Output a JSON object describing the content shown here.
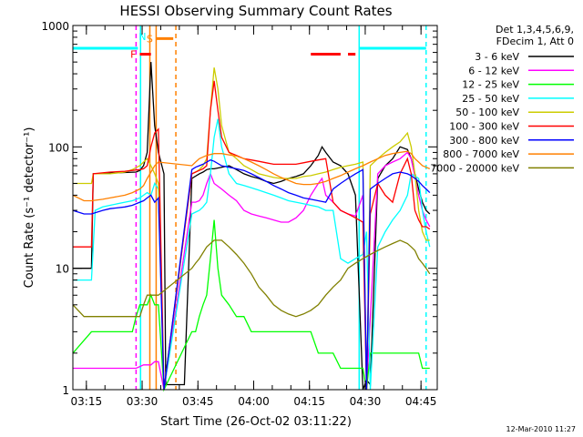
{
  "chart_data": {
    "type": "line",
    "title": "HESSI Observing Summary Count Rates",
    "xlabel": "Start Time (26-Oct-02 03:11:22)",
    "ylabel": "Count Rate (s⁻¹ detector⁻¹)",
    "x_unit": "minutes since 03:11:22",
    "x_ticks": [
      {
        "label": "03:15",
        "x": 3.63
      },
      {
        "label": "03:30",
        "x": 18.63
      },
      {
        "label": "03:45",
        "x": 33.63
      },
      {
        "label": "04:00",
        "x": 48.63
      },
      {
        "label": "04:15",
        "x": 63.63
      },
      {
        "label": "04:30",
        "x": 78.63
      },
      {
        "label": "04:45",
        "x": 93.63
      }
    ],
    "y_ticks": [
      {
        "label": "1",
        "y": 1
      },
      {
        "label": "10",
        "y": 10
      },
      {
        "label": "100",
        "y": 100
      },
      {
        "label": "1000",
        "y": 1000
      }
    ],
    "xlim": [
      0,
      98
    ],
    "ylim": [
      1,
      1000
    ],
    "y_scale": "log",
    "legend_header": [
      "Det 1,3,4,5,6,9,",
      "FDecim 1, Att 0"
    ],
    "legend_position": "right",
    "series": [
      {
        "name": "3 - 6 keV",
        "color": "#000000",
        "x": [
          0,
          5,
          5.5,
          17,
          18,
          19,
          20,
          21,
          22,
          23,
          24.5,
          25,
          26,
          27,
          28,
          29,
          30,
          32,
          34,
          35,
          36,
          37,
          38,
          40,
          42,
          44,
          46,
          48,
          50,
          52,
          54,
          56,
          58,
          60,
          62,
          64,
          66,
          67,
          68,
          70,
          72,
          74,
          76,
          78,
          79,
          80,
          82,
          84,
          86,
          88,
          90,
          91,
          93,
          94,
          95,
          96
        ],
        "y": [
          10,
          10,
          60,
          62,
          64,
          70,
          90,
          500,
          150,
          90,
          60,
          1.1,
          1.1,
          1.1,
          1.1,
          1.1,
          1.1,
          55,
          60,
          62,
          65,
          66,
          66,
          68,
          70,
          65,
          60,
          57,
          55,
          52,
          50,
          52,
          55,
          57,
          60,
          70,
          85,
          100,
          90,
          75,
          70,
          60,
          40,
          1,
          1.2,
          1.1,
          55,
          70,
          80,
          100,
          95,
          80,
          45,
          35,
          30,
          28
        ]
      },
      {
        "name": "6 - 12 keV",
        "color": "#ff00ff",
        "x": [
          0,
          5,
          17,
          19,
          21,
          22,
          23,
          24.5,
          32,
          33,
          34,
          35,
          36,
          37,
          38,
          40,
          42,
          44,
          46,
          48,
          50,
          52,
          54,
          56,
          58,
          60,
          62,
          64,
          66,
          67,
          68,
          70,
          72,
          74,
          76,
          78,
          79,
          82,
          84,
          86,
          88,
          90,
          91,
          93,
          94,
          95,
          96
        ],
        "y": [
          1.5,
          1.5,
          1.5,
          1.6,
          1.6,
          1.7,
          1.7,
          1.0,
          35,
          35,
          36,
          40,
          50,
          60,
          50,
          45,
          40,
          36,
          30,
          28,
          27,
          26,
          25,
          24,
          24,
          26,
          30,
          40,
          50,
          55,
          40,
          35,
          30,
          28,
          27,
          40,
          1,
          60,
          70,
          75,
          80,
          90,
          80,
          40,
          30,
          25,
          22
        ]
      },
      {
        "name": "12 - 25 keV",
        "color": "#00ff00",
        "x": [
          0,
          5,
          8,
          10,
          12,
          14,
          16,
          17,
          18,
          19,
          20,
          21,
          22,
          23,
          24.5,
          32,
          33,
          34,
          35,
          36,
          37,
          38,
          39,
          40,
          42,
          44,
          46,
          48,
          50,
          52,
          54,
          56,
          58,
          60,
          62,
          64,
          66,
          68,
          70,
          72,
          74,
          76,
          78,
          79,
          80,
          82,
          84,
          86,
          88,
          90,
          91,
          93,
          94,
          95,
          96
        ],
        "y": [
          2,
          3,
          3,
          3,
          3,
          3,
          3,
          4,
          5,
          5,
          5,
          6,
          5,
          5,
          1,
          3,
          3,
          4,
          5,
          6,
          12,
          25,
          10,
          6,
          5,
          4,
          4,
          3,
          3,
          3,
          3,
          3,
          3,
          3,
          3,
          3,
          2,
          2,
          2,
          1.5,
          1.5,
          1.5,
          1.5,
          1,
          2,
          2,
          2,
          2,
          2,
          2,
          2,
          2,
          1.5,
          1.5,
          1.5
        ]
      },
      {
        "name": "25 - 50 keV",
        "color": "#00ffff",
        "x": [
          0,
          3,
          5,
          6,
          8,
          10,
          14,
          16,
          18,
          19,
          20,
          21,
          22,
          23,
          24.5,
          32,
          33,
          34,
          35,
          36,
          37,
          38,
          39,
          40,
          42,
          44,
          46,
          48,
          50,
          52,
          54,
          56,
          58,
          60,
          62,
          64,
          66,
          68,
          70,
          72,
          74,
          76,
          78,
          79,
          80,
          82,
          84,
          86,
          88,
          90,
          91,
          93,
          94,
          95,
          96
        ],
        "y": [
          8,
          8,
          8,
          30,
          32,
          33,
          35,
          36,
          38,
          40,
          42,
          40,
          50,
          45,
          1,
          28,
          29,
          30,
          32,
          35,
          60,
          120,
          170,
          100,
          60,
          50,
          48,
          46,
          44,
          42,
          40,
          38,
          36,
          35,
          34,
          33,
          32,
          30,
          30,
          12,
          11,
          12,
          13,
          20,
          1,
          15,
          20,
          25,
          30,
          40,
          60,
          55,
          30,
          20,
          15
        ]
      },
      {
        "name": "50 - 100 keV",
        "color": "#cccc00",
        "x": [
          0,
          5,
          5.5,
          10,
          14,
          16,
          18,
          19,
          20,
          21,
          22,
          23,
          24.5,
          32,
          33,
          34,
          35,
          36,
          37,
          38,
          39,
          40,
          42,
          44,
          46,
          48,
          50,
          52,
          54,
          56,
          58,
          60,
          62,
          64,
          66,
          68,
          70,
          72,
          74,
          76,
          78,
          79,
          80,
          82,
          84,
          86,
          88,
          90,
          91,
          92,
          93,
          94,
          95,
          96
        ],
        "y": [
          50,
          50,
          60,
          60,
          62,
          65,
          70,
          75,
          80,
          70,
          60,
          50,
          1,
          60,
          62,
          65,
          70,
          80,
          200,
          450,
          300,
          150,
          90,
          80,
          70,
          65,
          60,
          58,
          56,
          55,
          55,
          55,
          57,
          58,
          60,
          62,
          65,
          68,
          70,
          72,
          75,
          1,
          70,
          80,
          90,
          100,
          110,
          130,
          100,
          60,
          30,
          20,
          17,
          17
        ]
      },
      {
        "name": "100 - 300 keV",
        "color": "#ff0000",
        "x": [
          0,
          5,
          5.5,
          10,
          14,
          16,
          18,
          19,
          20,
          21,
          22,
          23,
          24.5,
          32,
          33,
          34,
          35,
          36,
          37,
          38,
          39,
          40,
          42,
          44,
          46,
          48,
          50,
          52,
          54,
          56,
          58,
          60,
          62,
          64,
          66,
          68,
          70,
          72,
          74,
          76,
          78,
          79,
          80,
          82,
          84,
          86,
          88,
          90,
          91,
          92,
          93,
          94,
          95,
          96
        ],
        "y": [
          15,
          15,
          60,
          62,
          63,
          64,
          65,
          66,
          70,
          100,
          130,
          140,
          1,
          60,
          62,
          64,
          66,
          70,
          200,
          350,
          200,
          120,
          90,
          85,
          80,
          78,
          76,
          74,
          72,
          72,
          72,
          72,
          74,
          76,
          78,
          80,
          35,
          30,
          28,
          26,
          24,
          1,
          28,
          50,
          40,
          35,
          60,
          80,
          60,
          30,
          25,
          22,
          22,
          21
        ]
      },
      {
        "name": "300 - 800 keV",
        "color": "#0000ff",
        "x": [
          0,
          3,
          5,
          8,
          10,
          14,
          16,
          18,
          19,
          20,
          21,
          22,
          23,
          24.5,
          32,
          33,
          34,
          35,
          36,
          37,
          38,
          40,
          42,
          44,
          46,
          48,
          50,
          52,
          54,
          56,
          58,
          60,
          62,
          64,
          66,
          68,
          70,
          72,
          74,
          76,
          78,
          79,
          80,
          82,
          84,
          86,
          88,
          90,
          91,
          92,
          93,
          94,
          95,
          96
        ],
        "y": [
          30,
          28,
          28,
          30,
          31,
          32,
          33,
          35,
          36,
          38,
          40,
          35,
          38,
          1,
          65,
          68,
          70,
          72,
          75,
          78,
          76,
          70,
          68,
          66,
          64,
          60,
          56,
          52,
          48,
          45,
          42,
          40,
          38,
          37,
          36,
          35,
          45,
          50,
          55,
          60,
          65,
          1,
          45,
          50,
          55,
          60,
          62,
          60,
          58,
          55,
          52,
          48,
          45,
          42
        ]
      },
      {
        "name": "800 - 7000 keV",
        "color": "#ff8000",
        "x": [
          0,
          3,
          5,
          8,
          10,
          14,
          16,
          18,
          19,
          20,
          21,
          22,
          23,
          32,
          33,
          34,
          36,
          38,
          40,
          42,
          44,
          46,
          48,
          50,
          52,
          54,
          56,
          58,
          60,
          62,
          64,
          66,
          68,
          70,
          72,
          74,
          76,
          78,
          80,
          82,
          84,
          86,
          88,
          90,
          91,
          92,
          93,
          94,
          95,
          96
        ],
        "y": [
          40,
          36,
          36,
          37,
          38,
          40,
          42,
          45,
          48,
          55,
          62,
          70,
          75,
          70,
          75,
          80,
          85,
          88,
          88,
          86,
          84,
          80,
          75,
          70,
          65,
          60,
          56,
          53,
          50,
          49,
          49,
          50,
          52,
          55,
          58,
          62,
          66,
          70,
          75,
          80,
          85,
          88,
          90,
          92,
          88,
          80,
          75,
          70,
          68,
          66
        ]
      },
      {
        "name": "7000 - 20000 keV",
        "color": "#808000",
        "x": [
          0,
          3,
          5,
          8,
          10,
          14,
          16,
          18,
          19,
          20,
          21,
          22,
          23,
          32,
          33,
          34,
          36,
          38,
          40,
          42,
          44,
          46,
          48,
          50,
          52,
          54,
          56,
          58,
          60,
          62,
          64,
          66,
          68,
          70,
          72,
          74,
          76,
          78,
          80,
          82,
          84,
          86,
          88,
          90,
          91,
          92,
          93,
          94,
          95,
          96
        ],
        "y": [
          5,
          4,
          4,
          4,
          4,
          4,
          4,
          4,
          5,
          6,
          6,
          6,
          6,
          10,
          11,
          12,
          15,
          17,
          17,
          15,
          13,
          11,
          9,
          7,
          6,
          5,
          4.5,
          4.2,
          4,
          4.2,
          4.5,
          5,
          6,
          7,
          8,
          10,
          11,
          12,
          13,
          14,
          15,
          16,
          17,
          16,
          15,
          14,
          12,
          11,
          10,
          9
        ]
      }
    ],
    "vertical_lines": [
      {
        "x": 17.0,
        "color": "#ff00ff",
        "style": "dashed"
      },
      {
        "x": 18.2,
        "color": "#00ffff",
        "style": "solid"
      },
      {
        "x": 20.7,
        "color": "#ff8000",
        "style": "solid"
      },
      {
        "x": 22.4,
        "color": "#ff8000",
        "style": "solid"
      },
      {
        "x": 27.7,
        "color": "#ff8000",
        "style": "dashed"
      },
      {
        "x": 77.0,
        "color": "#00ffff",
        "style": "solid"
      },
      {
        "x": 95.0,
        "color": "#00ffff",
        "style": "dashed"
      }
    ],
    "top_bars": [
      {
        "x0": 0,
        "x1": 17.5,
        "y": 650,
        "color": "#00ffff",
        "label": ""
      },
      {
        "x0": 77,
        "x1": 95,
        "y": 650,
        "color": "#00ffff",
        "label": ""
      },
      {
        "x0": 22.5,
        "x1": 27,
        "y": 780,
        "color": "#ff8000",
        "label": "S"
      },
      {
        "x0": 18,
        "x1": 21,
        "y": 580,
        "color": "#ff0000",
        "label": "F"
      },
      {
        "x0": 64,
        "x1": 72,
        "y": 580,
        "color": "#ff0000",
        "label": ""
      },
      {
        "x0": 74,
        "x1": 76,
        "y": 580,
        "color": "#ff0000",
        "label": ""
      }
    ],
    "annotations": [
      {
        "text": "N",
        "x": 18.7,
        "y": 760,
        "color": "#00ffff"
      }
    ]
  },
  "timestamp": "12-Mar-2010 11:27"
}
